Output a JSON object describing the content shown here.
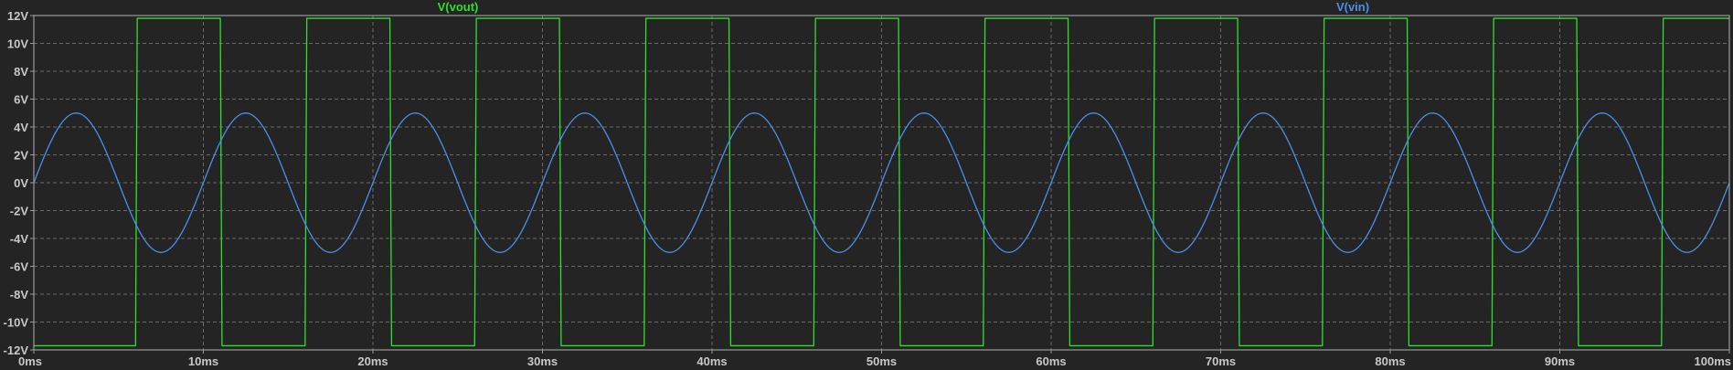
{
  "chart_data": {
    "type": "line",
    "title": "",
    "xlabel": "",
    "ylabel": "",
    "xlim": [
      0,
      100
    ],
    "ylim": [
      -12,
      12
    ],
    "x_unit": "ms",
    "y_unit": "V",
    "grid": true,
    "x_ticks": [
      {
        "value": 0,
        "label": "0ms"
      },
      {
        "value": 10,
        "label": "10ms"
      },
      {
        "value": 20,
        "label": "20ms"
      },
      {
        "value": 30,
        "label": "30ms"
      },
      {
        "value": 40,
        "label": "40ms"
      },
      {
        "value": 50,
        "label": "50ms"
      },
      {
        "value": 60,
        "label": "60ms"
      },
      {
        "value": 70,
        "label": "70ms"
      },
      {
        "value": 80,
        "label": "80ms"
      },
      {
        "value": 90,
        "label": "90ms"
      },
      {
        "value": 100,
        "label": "100ms"
      }
    ],
    "y_ticks": [
      {
        "value": 12,
        "label": "12V"
      },
      {
        "value": 10,
        "label": "10V"
      },
      {
        "value": 8,
        "label": "8V"
      },
      {
        "value": 6,
        "label": "6V"
      },
      {
        "value": 4,
        "label": "4V"
      },
      {
        "value": 2,
        "label": "2V"
      },
      {
        "value": 0,
        "label": "0V"
      },
      {
        "value": -2,
        "label": "-2V"
      },
      {
        "value": -4,
        "label": "-4V"
      },
      {
        "value": -6,
        "label": "-6V"
      },
      {
        "value": -8,
        "label": "-8V"
      },
      {
        "value": -10,
        "label": "-10V"
      },
      {
        "value": -12,
        "label": "-12V"
      }
    ],
    "series": [
      {
        "name": "V(vout)",
        "color": "#2ee02e",
        "shape": "square",
        "points": [
          [
            0,
            -11.7
          ],
          [
            6.0,
            -11.7
          ],
          [
            6.1,
            11.8
          ],
          [
            11.0,
            11.8
          ],
          [
            11.1,
            -11.7
          ],
          [
            16.0,
            -11.7
          ],
          [
            16.1,
            11.8
          ],
          [
            21.0,
            11.8
          ],
          [
            21.1,
            -11.7
          ],
          [
            26.0,
            -11.7
          ],
          [
            26.1,
            11.8
          ],
          [
            31.0,
            11.8
          ],
          [
            31.1,
            -11.7
          ],
          [
            36.0,
            -11.7
          ],
          [
            36.1,
            11.8
          ],
          [
            41.0,
            11.8
          ],
          [
            41.1,
            -11.7
          ],
          [
            46.0,
            -11.7
          ],
          [
            46.1,
            11.8
          ],
          [
            51.0,
            11.8
          ],
          [
            51.1,
            -11.7
          ],
          [
            56.0,
            -11.7
          ],
          [
            56.1,
            11.8
          ],
          [
            61.0,
            11.8
          ],
          [
            61.1,
            -11.7
          ],
          [
            66.0,
            -11.7
          ],
          [
            66.1,
            11.8
          ],
          [
            71.0,
            11.8
          ],
          [
            71.1,
            -11.7
          ],
          [
            76.0,
            -11.7
          ],
          [
            76.1,
            11.8
          ],
          [
            81.0,
            11.8
          ],
          [
            81.1,
            -11.7
          ],
          [
            86.0,
            -11.7
          ],
          [
            86.1,
            11.8
          ],
          [
            91.0,
            11.8
          ],
          [
            91.1,
            -11.7
          ],
          [
            96.0,
            -11.7
          ],
          [
            96.1,
            11.8
          ],
          [
            100,
            11.8
          ]
        ]
      },
      {
        "name": "V(vin)",
        "color": "#4a90e8",
        "shape": "sine",
        "amplitude": 5,
        "frequency_hz": 100,
        "offset": 0
      }
    ]
  }
}
